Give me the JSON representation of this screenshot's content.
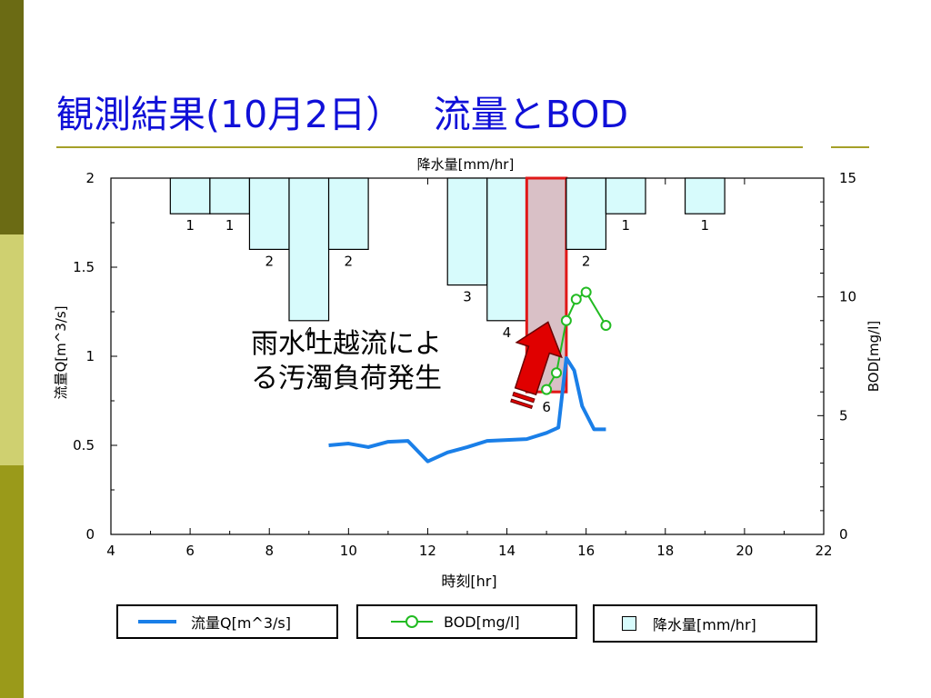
{
  "slide": {
    "title": "観測結果(10月2日）　 流量とBOD",
    "annotation": "雨水吐越流によ\nる汚濁負荷発生"
  },
  "colors": {
    "flow": "#1a7fe8",
    "bod": "#22bb22",
    "rain_fill": "#d7fbfc",
    "highlight_fill": "#d9c0c6",
    "highlight_border": "#e01818",
    "arrow": "#e00000",
    "title": "#1010d8"
  },
  "icons": {
    "arrow": "red-up-arrow-icon"
  },
  "chart_data": {
    "type": "line",
    "xlabel": "時刻[hr]",
    "ylabel_left": "流量Q[m^3/s]",
    "ylabel_right": "BOD[mg/l]",
    "rain_label": "降水量[mm/hr]",
    "xlim": [
      4,
      22
    ],
    "xticks": [
      "4",
      "6",
      "8",
      "10",
      "12",
      "14",
      "16",
      "18",
      "20",
      "22"
    ],
    "ylim_left": [
      0,
      2
    ],
    "yticks_left": [
      "0",
      "0.5",
      "1",
      "1.5",
      "2"
    ],
    "ylim_right": [
      0,
      15
    ],
    "yticks_right": [
      "0",
      "5",
      "10",
      "15"
    ],
    "rain_max": 10,
    "rainfall": [
      {
        "x": 6,
        "value": 1,
        "label": "1"
      },
      {
        "x": 7,
        "value": 1,
        "label": "1"
      },
      {
        "x": 8,
        "value": 2,
        "label": "2"
      },
      {
        "x": 9,
        "value": 4,
        "label": "4"
      },
      {
        "x": 10,
        "value": 2,
        "label": "2"
      },
      {
        "x": 13,
        "value": 3,
        "label": "3"
      },
      {
        "x": 14,
        "value": 4,
        "label": "4"
      },
      {
        "x": 15,
        "value": 6,
        "label": "6",
        "highlight": true
      },
      {
        "x": 16,
        "value": 2,
        "label": "2"
      },
      {
        "x": 17,
        "value": 1,
        "label": "1"
      },
      {
        "x": 19,
        "value": 1,
        "label": "1"
      }
    ],
    "series": [
      {
        "name": "流量Q[m^3/s]",
        "axis": "left",
        "x": [
          9.5,
          10,
          10.5,
          11,
          11.5,
          12,
          12.5,
          13,
          13.5,
          14,
          14.5,
          15,
          15.3,
          15.5,
          15.7,
          15.9,
          16.2,
          16.5
        ],
        "y": [
          0.5,
          0.51,
          0.49,
          0.52,
          0.525,
          0.41,
          0.46,
          0.49,
          0.525,
          0.53,
          0.535,
          0.57,
          0.6,
          0.99,
          0.92,
          0.72,
          0.59,
          0.59
        ]
      },
      {
        "name": "BOD[mg/l]",
        "axis": "right",
        "x": [
          15,
          15.25,
          15.5,
          15.75,
          16,
          16.5
        ],
        "y": [
          6.1,
          6.8,
          9.0,
          9.9,
          10.2,
          8.8
        ]
      }
    ],
    "legend": {
      "flow_label": "流量Q[m^3/s]",
      "bod_label": "BOD[mg/l]",
      "rain_label": "降水量[mm/hr]"
    }
  }
}
